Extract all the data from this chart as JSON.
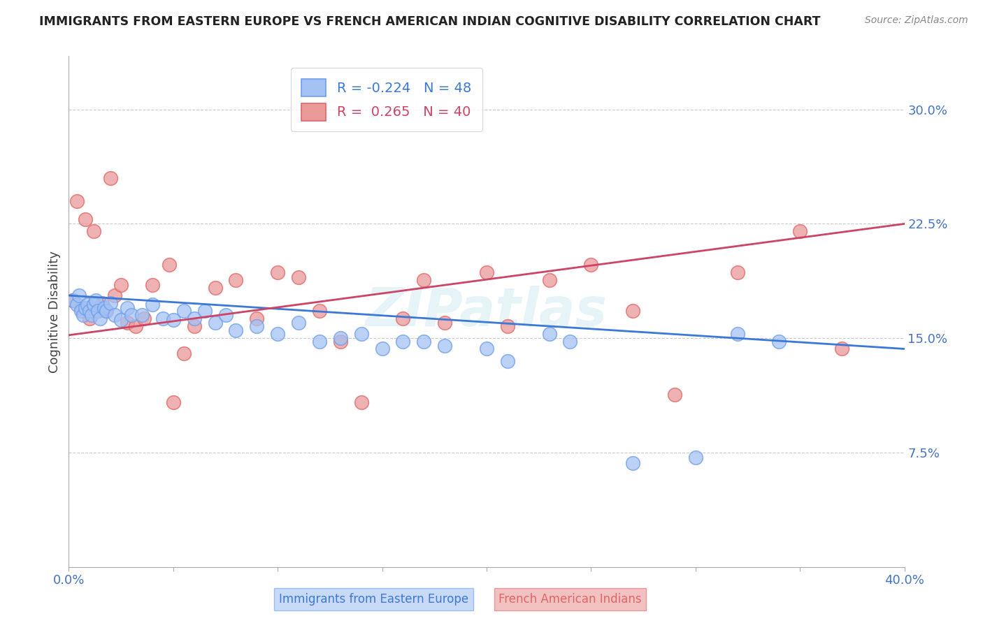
{
  "title": "IMMIGRANTS FROM EASTERN EUROPE VS FRENCH AMERICAN INDIAN COGNITIVE DISABILITY CORRELATION CHART",
  "source": "Source: ZipAtlas.com",
  "xlabel_blue": "Immigrants from Eastern Europe",
  "xlabel_pink": "French American Indians",
  "ylabel": "Cognitive Disability",
  "R_blue": -0.224,
  "N_blue": 48,
  "R_pink": 0.265,
  "N_pink": 40,
  "xlim": [
    0.0,
    0.4
  ],
  "ylim": [
    0.0,
    0.335
  ],
  "yticks": [
    0.075,
    0.15,
    0.225,
    0.3
  ],
  "ytick_labels": [
    "7.5%",
    "15.0%",
    "22.5%",
    "30.0%"
  ],
  "watermark": "ZIPatlas",
  "blue_color": "#a4c2f4",
  "blue_edge_color": "#6d9eeb",
  "pink_color": "#ea9999",
  "pink_edge_color": "#e06666",
  "blue_line_color": "#3c78d8",
  "pink_line_color": "#cc4466",
  "title_color": "#222222",
  "axis_label_color": "#4472c4",
  "grid_color": "#bbbbbb",
  "blue_scatter_x": [
    0.002,
    0.004,
    0.005,
    0.006,
    0.007,
    0.008,
    0.009,
    0.01,
    0.011,
    0.012,
    0.013,
    0.014,
    0.015,
    0.017,
    0.018,
    0.02,
    0.022,
    0.025,
    0.028,
    0.03,
    0.035,
    0.04,
    0.045,
    0.05,
    0.055,
    0.06,
    0.065,
    0.07,
    0.075,
    0.08,
    0.09,
    0.1,
    0.11,
    0.12,
    0.13,
    0.14,
    0.15,
    0.16,
    0.17,
    0.18,
    0.2,
    0.21,
    0.23,
    0.24,
    0.27,
    0.3,
    0.32,
    0.34
  ],
  "blue_scatter_y": [
    0.175,
    0.172,
    0.178,
    0.168,
    0.165,
    0.17,
    0.172,
    0.168,
    0.165,
    0.172,
    0.175,
    0.168,
    0.163,
    0.17,
    0.168,
    0.173,
    0.165,
    0.162,
    0.17,
    0.165,
    0.165,
    0.172,
    0.163,
    0.162,
    0.168,
    0.163,
    0.168,
    0.16,
    0.165,
    0.155,
    0.158,
    0.153,
    0.16,
    0.148,
    0.15,
    0.153,
    0.143,
    0.148,
    0.148,
    0.145,
    0.143,
    0.135,
    0.153,
    0.148,
    0.068,
    0.072,
    0.153,
    0.148
  ],
  "pink_scatter_x": [
    0.002,
    0.004,
    0.006,
    0.008,
    0.01,
    0.012,
    0.014,
    0.016,
    0.018,
    0.02,
    0.022,
    0.025,
    0.028,
    0.032,
    0.036,
    0.04,
    0.048,
    0.055,
    0.06,
    0.07,
    0.08,
    0.09,
    0.1,
    0.11,
    0.12,
    0.13,
    0.14,
    0.16,
    0.17,
    0.18,
    0.2,
    0.21,
    0.23,
    0.25,
    0.27,
    0.29,
    0.32,
    0.35,
    0.37,
    0.05
  ],
  "pink_scatter_y": [
    0.175,
    0.24,
    0.17,
    0.228,
    0.163,
    0.22,
    0.168,
    0.173,
    0.168,
    0.255,
    0.178,
    0.185,
    0.16,
    0.158,
    0.163,
    0.185,
    0.198,
    0.14,
    0.158,
    0.183,
    0.188,
    0.163,
    0.193,
    0.19,
    0.168,
    0.148,
    0.108,
    0.163,
    0.188,
    0.16,
    0.193,
    0.158,
    0.188,
    0.198,
    0.168,
    0.113,
    0.193,
    0.22,
    0.143,
    0.108
  ],
  "blue_trend_x": [
    0.0,
    0.4
  ],
  "blue_trend_y": [
    0.178,
    0.143
  ],
  "pink_trend_x": [
    0.0,
    0.4
  ],
  "pink_trend_y": [
    0.152,
    0.225
  ]
}
